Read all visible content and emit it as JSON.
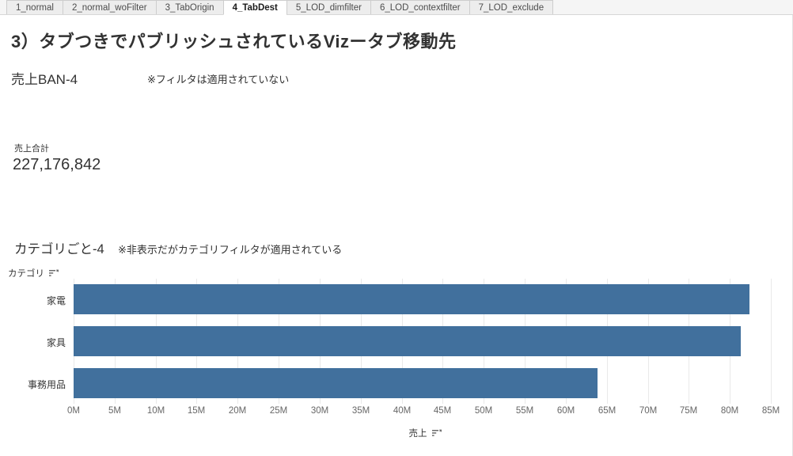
{
  "tabs": {
    "items": [
      {
        "label": "1_normal"
      },
      {
        "label": "2_normal_woFilter"
      },
      {
        "label": "3_TabOrigin"
      },
      {
        "label": "4_TabDest"
      },
      {
        "label": "5_LOD_dimfilter"
      },
      {
        "label": "6_LOD_contextfilter"
      },
      {
        "label": "7_LOD_exclude"
      }
    ],
    "active_label": "4_TabDest"
  },
  "page": {
    "title": "3）タブつきでパブリッシュされているVizータブ移動先"
  },
  "ban_section": {
    "heading": "売上BAN-4",
    "note": "※フィルタは適用されていない",
    "measure_label": "売上合計",
    "value": "227,176,842"
  },
  "category_section": {
    "heading": "カテゴリごと-4",
    "note": "※非表示だがカテゴリフィルタが適用されている"
  },
  "chart_data": {
    "type": "bar",
    "orientation": "horizontal",
    "title": "カテゴリごと-4",
    "row_axis_label": "カテゴリ",
    "value_axis_label": "売上",
    "categories": [
      "家電",
      "家具",
      "事務用品"
    ],
    "values": [
      82400000,
      81300000,
      63900000
    ],
    "xlim": [
      0,
      85000000
    ],
    "tick_step": 5000000,
    "tick_labels": [
      "0M",
      "5M",
      "10M",
      "15M",
      "20M",
      "25M",
      "30M",
      "35M",
      "40M",
      "45M",
      "50M",
      "55M",
      "60M",
      "65M",
      "70M",
      "75M",
      "80M",
      "85M"
    ],
    "grid": true,
    "legend": "none",
    "bar_color": "#41709d"
  }
}
